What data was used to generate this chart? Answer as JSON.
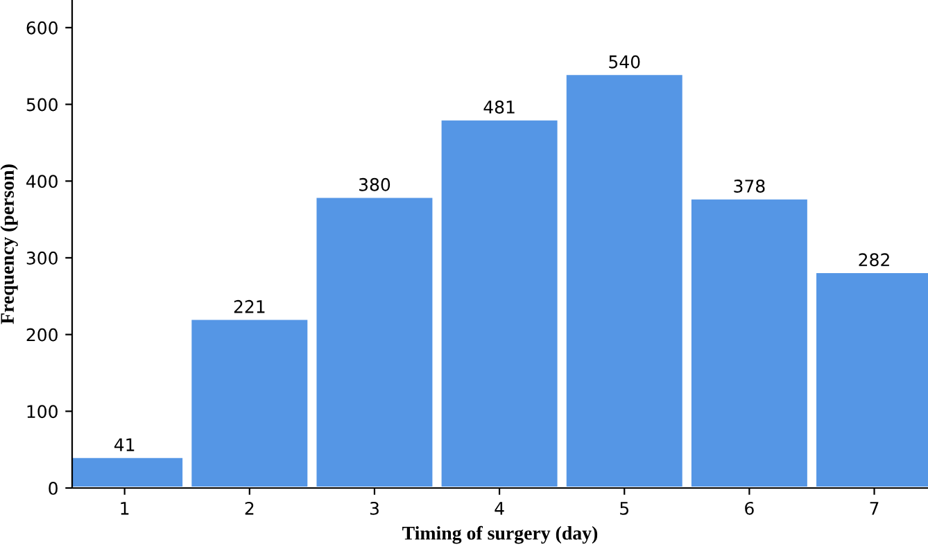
{
  "chart_data": {
    "type": "bar",
    "xlabel": "Timing of surgery (day)",
    "ylabel": "Frequency (person)",
    "categories": [
      "1",
      "2",
      "3",
      "4",
      "5",
      "6",
      "7"
    ],
    "values": [
      41,
      221,
      380,
      481,
      540,
      378,
      282
    ],
    "color": "#5596e5",
    "ylim": [
      0,
      636
    ],
    "yticks": [
      0,
      100,
      200,
      300,
      400,
      500,
      600
    ],
    "data_labels": true,
    "grid": false,
    "legend": false
  }
}
